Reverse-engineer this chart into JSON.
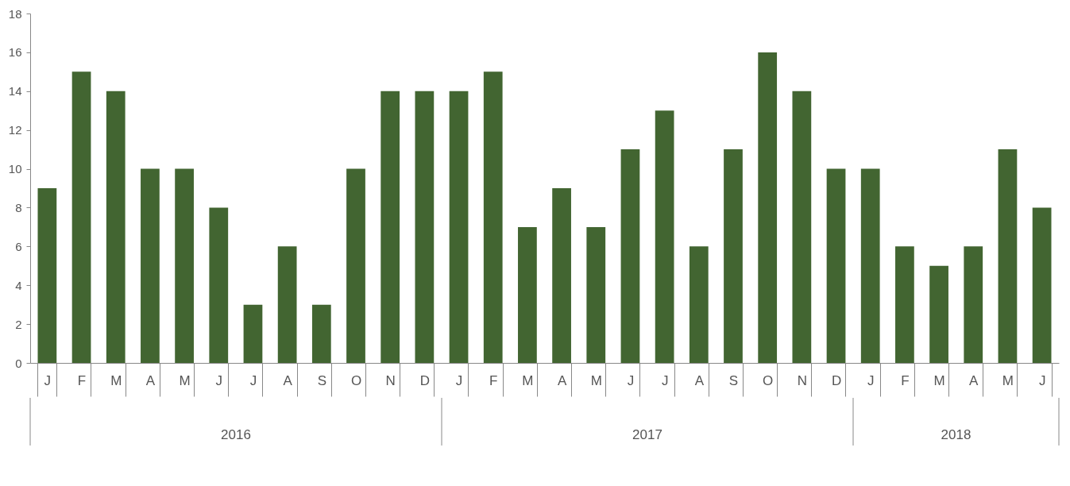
{
  "chart_data": {
    "type": "bar",
    "categories": [
      "J",
      "F",
      "M",
      "A",
      "M",
      "J",
      "J",
      "A",
      "S",
      "O",
      "N",
      "D",
      "J",
      "F",
      "M",
      "A",
      "M",
      "J",
      "J",
      "A",
      "S",
      "O",
      "N",
      "D",
      "J",
      "F",
      "M",
      "A",
      "M",
      "J"
    ],
    "values": [
      9,
      15,
      14,
      10,
      10,
      8,
      3,
      6,
      3,
      10,
      14,
      14,
      14,
      15,
      7,
      9,
      7,
      11,
      13,
      6,
      11,
      16,
      14,
      10,
      10,
      6,
      5,
      6,
      11,
      8
    ],
    "annotations": [
      "2016",
      "2017",
      "2018"
    ],
    "color": "#426531",
    "ylim": [
      0,
      18
    ],
    "yticks": [
      0,
      2,
      4,
      6,
      8,
      10,
      12,
      14,
      16,
      18
    ],
    "grid": false
  }
}
